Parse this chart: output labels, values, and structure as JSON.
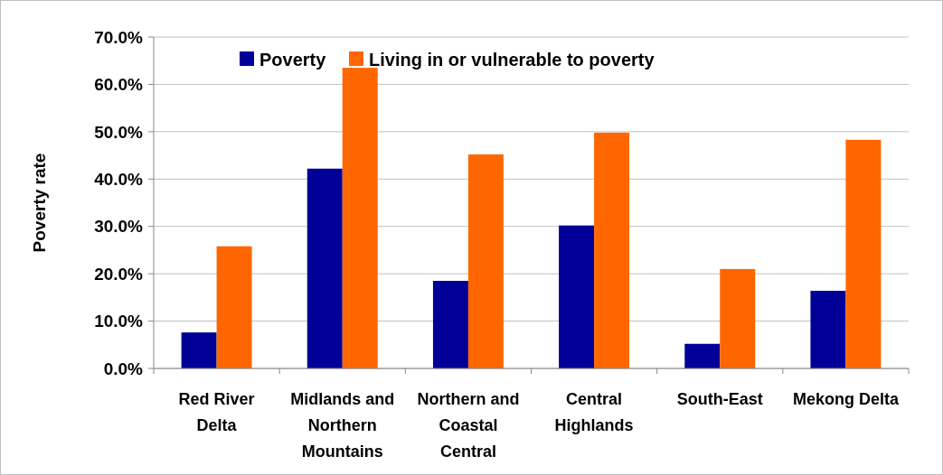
{
  "chart_data": {
    "type": "bar",
    "ylabel": "Poverty rate",
    "categories": [
      "Red River Delta",
      "Midlands and Northern Mountains",
      "Northern and Coastal Central",
      "Central Highlands",
      "South-East",
      "Mekong Delta"
    ],
    "series": [
      {
        "name": "Poverty",
        "color": "#000099",
        "values": [
          7.6,
          42.2,
          18.5,
          30.2,
          5.2,
          16.4
        ]
      },
      {
        "name": "Living in or vulnerable to poverty",
        "color": "#ff6600",
        "values": [
          25.8,
          63.5,
          45.2,
          49.8,
          21.0,
          48.3
        ]
      }
    ],
    "ylim": [
      0,
      70
    ],
    "yticks": [
      {
        "value": 0,
        "label": "0.0%"
      },
      {
        "value": 10,
        "label": "10.0%"
      },
      {
        "value": 20,
        "label": "20.0%"
      },
      {
        "value": 30,
        "label": "30.0%"
      },
      {
        "value": 40,
        "label": "40.0%"
      },
      {
        "value": 50,
        "label": "50.0%"
      },
      {
        "value": 60,
        "label": "60.0%"
      },
      {
        "value": 70,
        "label": "70.0%"
      }
    ],
    "grid": "y",
    "legend": "top"
  }
}
